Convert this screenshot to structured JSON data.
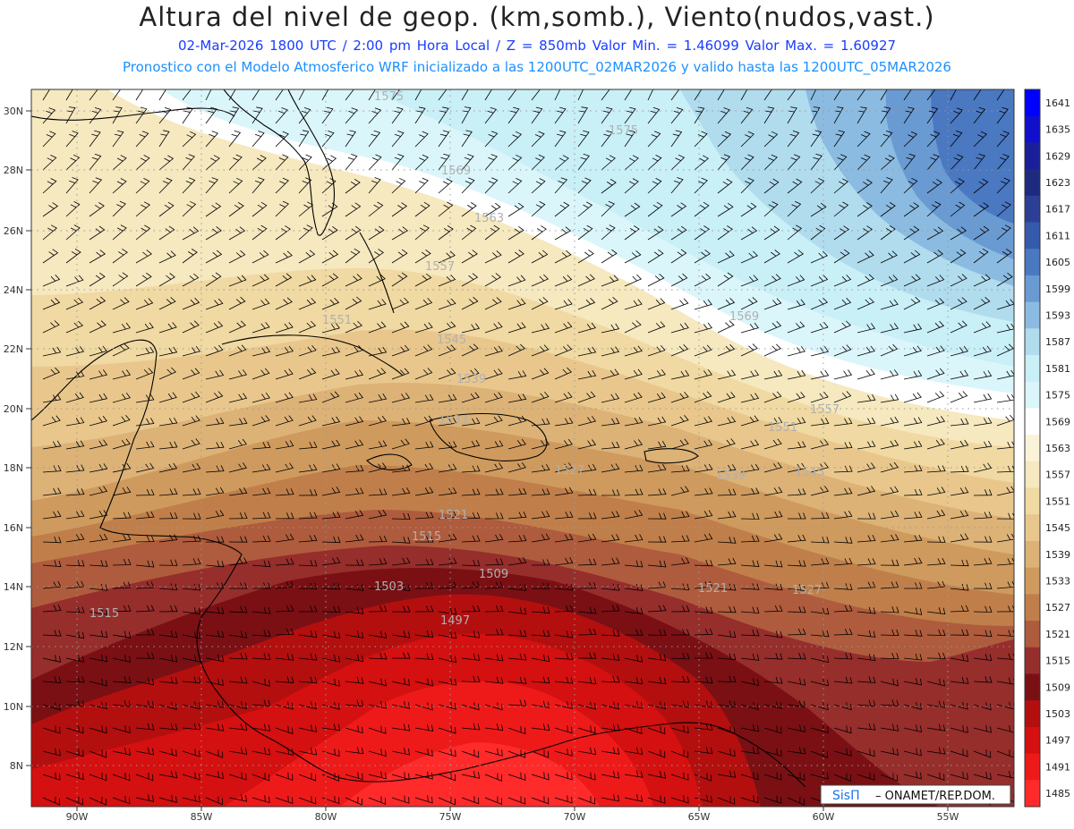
{
  "title": "Altura del nivel de geop. (km,somb.), Viento(nudos,vast.)",
  "subtitle_line1": "02-Mar-2026  1800 UTC / 2:00 pm Hora Local / Z = 850mb     Valor Min. = 1.46099  Valor Max. = 1.60927",
  "subtitle_line2": "Pronostico con el Modelo Atmosferico WRF inicializado a las 1200UTC_02MAR2026 y valido hasta las  1200UTC_05MAR2026",
  "credit": {
    "logo": "SisΠ",
    "text": "– ONAMET/REP.DOM."
  },
  "lat_labels": [
    "30N",
    "28N",
    "26N",
    "24N",
    "22N",
    "20N",
    "18N",
    "16N",
    "14N",
    "12N",
    "10N",
    "8N"
  ],
  "lon_labels": [
    "90W",
    "85W",
    "80W",
    "75W",
    "70W",
    "65W",
    "60W",
    "55W"
  ],
  "colorbar": {
    "labels": [
      "1641",
      "1635",
      "1629",
      "1623",
      "1617",
      "1611",
      "1605",
      "1599",
      "1593",
      "1587",
      "1581",
      "1575",
      "1569",
      "1563",
      "1557",
      "1551",
      "1545",
      "1539",
      "1533",
      "1527",
      "1521",
      "1515",
      "1509",
      "1503",
      "1497",
      "1491",
      "1485"
    ],
    "colors": [
      "#0000ff",
      "#1010cc",
      "#1a1f99",
      "#1e2a80",
      "#2c3f94",
      "#3559ab",
      "#4a78c1",
      "#6a9ad2",
      "#8bbbe0",
      "#b0dcee",
      "#c9eff7",
      "#dbf6fb",
      "#ffffff",
      "#fbf3d8",
      "#f6e8bf",
      "#f0d9a2",
      "#e9c78c",
      "#dcb277",
      "#cf9a5e",
      "#c07f4a",
      "#ae5c3d",
      "#962e2c",
      "#7a1014",
      "#b30f0f",
      "#d41010",
      "#ee1a1a",
      "#ff2a2a"
    ]
  },
  "contour_labels": [
    "1575",
    "1575",
    "1569",
    "1563",
    "1557",
    "1551",
    "1545",
    "1539",
    "1533",
    "1527",
    "1521",
    "1515",
    "1509",
    "1503",
    "1497",
    "1515",
    "1569",
    "1557",
    "1551",
    "1545",
    "1539",
    "1521",
    "1527"
  ]
}
